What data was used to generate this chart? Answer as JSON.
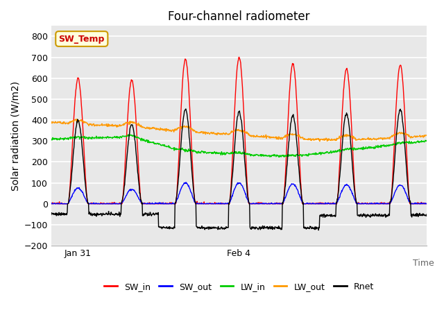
{
  "title": "Four-channel radiometer",
  "xlabel": "Time",
  "ylabel": "Solar radiation (W/m2)",
  "ylim": [
    -200,
    850
  ],
  "yticks": [
    -200,
    -100,
    0,
    100,
    200,
    300,
    400,
    500,
    600,
    700,
    800
  ],
  "x_tick_labels": [
    "Jan 31",
    "Feb 4"
  ],
  "bg_color": "#e8e8e8",
  "grid_color": "#ffffff",
  "legend_labels": [
    "SW_in",
    "SW_out",
    "LW_in",
    "LW_out",
    "Rnet"
  ],
  "legend_colors": [
    "#ff0000",
    "#0000ff",
    "#00cc00",
    "#ff9900",
    "#000000"
  ],
  "annotation_text": "SW_Temp",
  "annotation_color": "#cc0000",
  "annotation_bg": "#ffffdd",
  "annotation_border": "#cc9900",
  "title_fontsize": 12,
  "label_fontsize": 10,
  "n_days": 7,
  "n_points_per_day": 144,
  "sw_in_peaks": [
    600,
    590,
    690,
    700,
    670,
    645,
    665
  ],
  "sw_out_peaks": [
    75,
    70,
    100,
    100,
    95,
    90,
    90
  ],
  "lw_in_day1": 310,
  "lw_in_day_mid": 230,
  "lw_in_day_late": 265,
  "lw_out_day1": 385,
  "lw_out_mid": 330,
  "rnet_night_early": -50,
  "rnet_night_mid": -115,
  "rnet_night_late": -55
}
